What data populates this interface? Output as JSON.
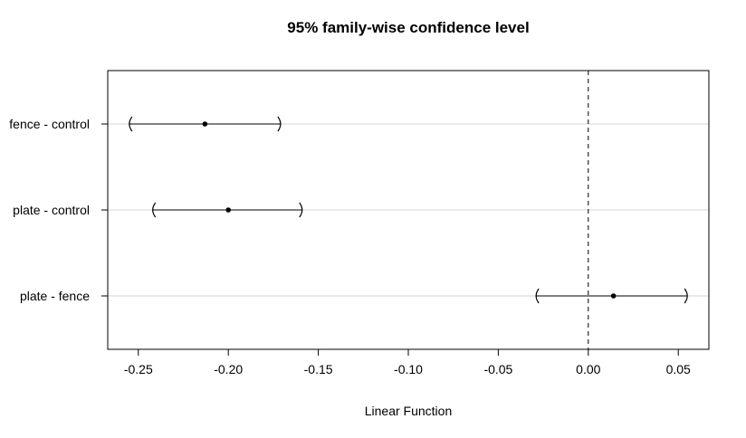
{
  "chart_data": {
    "type": "scatter",
    "title": "95% family-wise confidence level",
    "xlabel": "Linear Function",
    "ylabel": "",
    "xlim": [
      -0.267,
      0.067
    ],
    "reference_line": 0,
    "grid": true,
    "categories": [
      "fence - control",
      "plate - control",
      "plate - fence"
    ],
    "series": [
      {
        "estimate": [
          -0.213,
          -0.2,
          0.014
        ],
        "lower": [
          -0.255,
          -0.242,
          -0.029
        ],
        "upper": [
          -0.171,
          -0.159,
          0.055
        ]
      }
    ],
    "x_ticks": [
      -0.25,
      -0.2,
      -0.15,
      -0.1,
      -0.05,
      0.0,
      0.05
    ],
    "x_tick_labels": [
      "-0.25",
      "-0.20",
      "-0.15",
      "-0.10",
      "-0.05",
      "0.00",
      "0.05"
    ]
  }
}
